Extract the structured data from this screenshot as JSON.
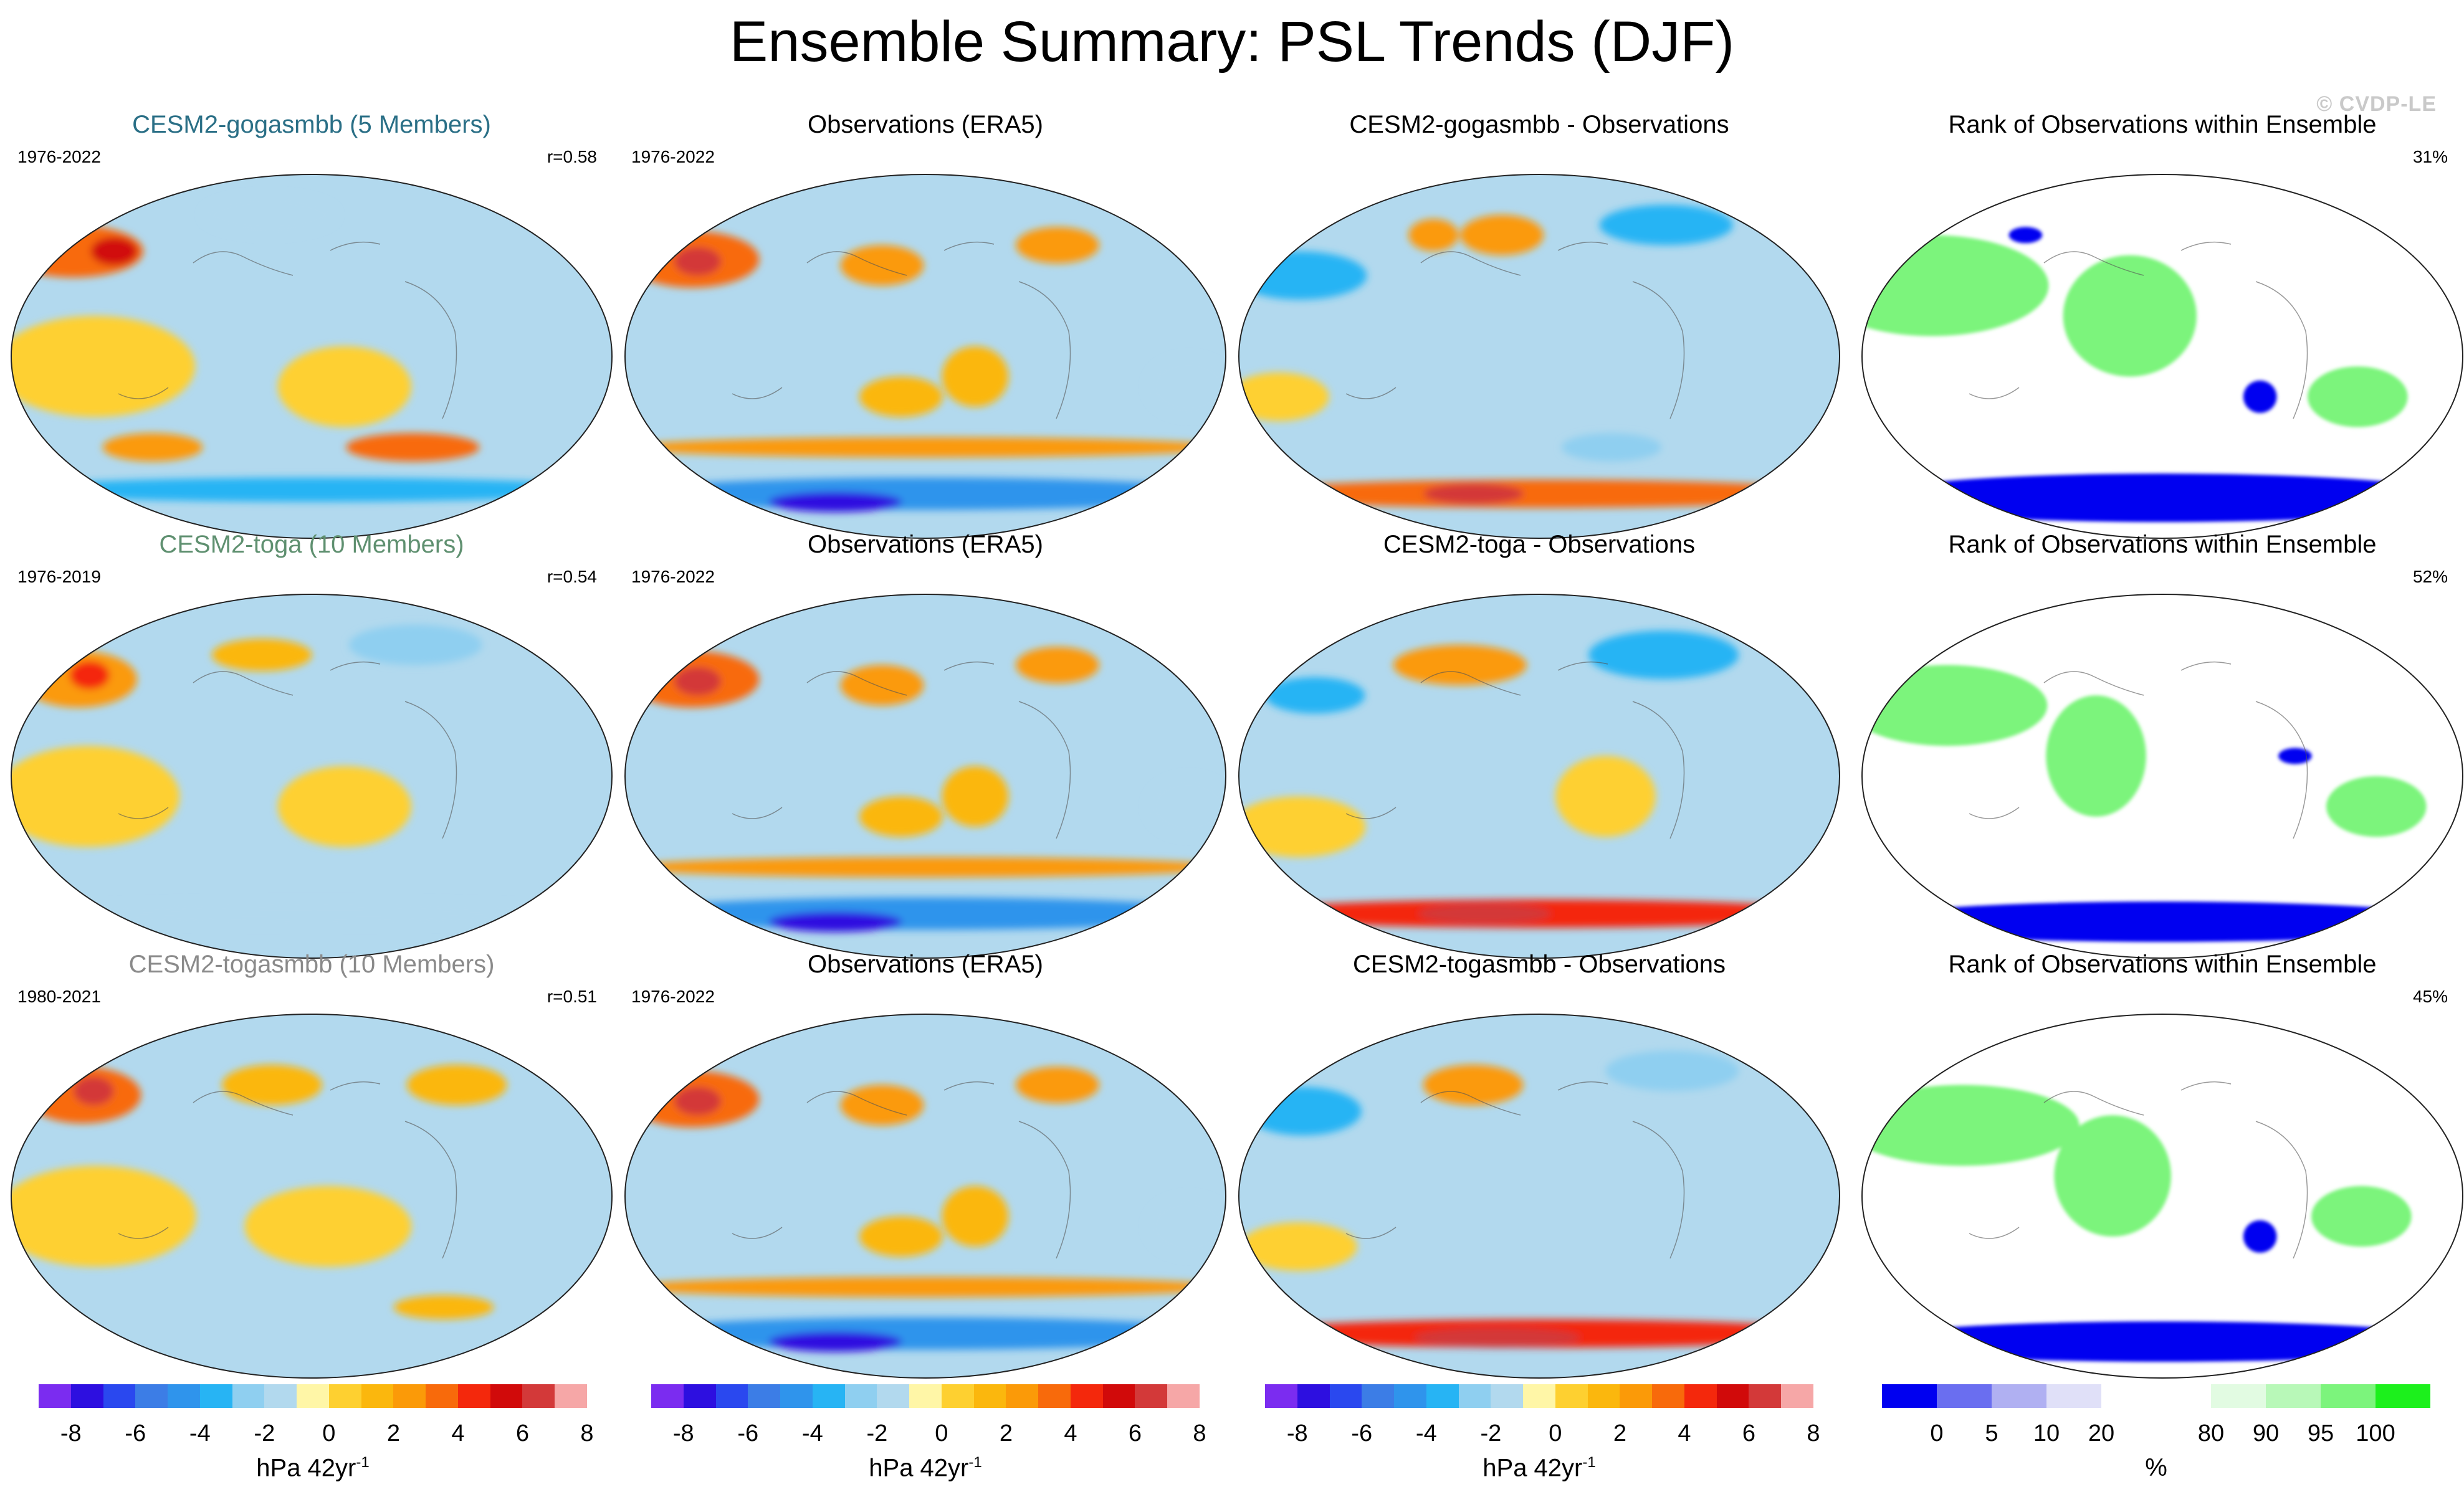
{
  "title": "Ensemble Summary: PSL Trends (DJF)",
  "watermark": "© CVDP-LE",
  "colors": {
    "title_gogasmbb": "#2a6f86",
    "title_toga": "#5f9070",
    "title_togasmbb": "#8a8a8a",
    "ocean": "#b2d9ee",
    "land_line": "#555555"
  },
  "chart_data": [
    {
      "type": "heatmap",
      "panel": "r1c1",
      "title": "CESM2-gogasmbb (5 Members)",
      "period": "1976-2022",
      "metric": "r=0.58",
      "blobs": [
        {
          "lon": -175,
          "lat": 52,
          "rx": 42,
          "ry": 13,
          "v": 3.5
        },
        {
          "lon": -145,
          "lat": 52,
          "rx": 14,
          "ry": 7,
          "v": 5.5
        },
        {
          "lon": -110,
          "lat": -45,
          "rx": 30,
          "ry": 7,
          "v": 3.0
        },
        {
          "lon": 70,
          "lat": -45,
          "rx": 40,
          "ry": 7,
          "v": 3.5
        },
        {
          "lon": 0,
          "lat": -66,
          "rx": 180,
          "ry": 6,
          "v": -3.5
        },
        {
          "lon": -40,
          "lat": 70,
          "rx": 40,
          "ry": 10,
          "v": -1.5
        },
        {
          "lon": -130,
          "lat": -5,
          "rx": 60,
          "ry": 25,
          "v": 0.5
        },
        {
          "lon": 20,
          "lat": -15,
          "rx": 40,
          "ry": 20,
          "v": 0.5
        }
      ]
    },
    {
      "type": "heatmap",
      "panel": "r1c2",
      "title": "Observations (ERA5)",
      "period": "1976-2022",
      "metric": "",
      "blobs": [
        {
          "lon": -165,
          "lat": 48,
          "rx": 40,
          "ry": 14,
          "v": 3.5
        },
        {
          "lon": -160,
          "lat": 47,
          "rx": 14,
          "ry": 7,
          "v": 6.5
        },
        {
          "lon": -30,
          "lat": 45,
          "rx": 25,
          "ry": 10,
          "v": 2.5
        },
        {
          "lon": 100,
          "lat": 55,
          "rx": 25,
          "ry": 9,
          "v": 2.5
        },
        {
          "lon": 0,
          "lat": -45,
          "rx": 180,
          "ry": 5,
          "v": 2.5
        },
        {
          "lon": 0,
          "lat": -68,
          "rx": 180,
          "ry": 8,
          "v": -4.5
        },
        {
          "lon": -90,
          "lat": -72,
          "rx": 40,
          "ry": 5,
          "v": -7.0
        },
        {
          "lon": 30,
          "lat": -10,
          "rx": 20,
          "ry": 15,
          "v": 2.0
        },
        {
          "lon": -15,
          "lat": -20,
          "rx": 25,
          "ry": 10,
          "v": 2.0
        },
        {
          "lon": 160,
          "lat": -15,
          "rx": 25,
          "ry": 15,
          "v": -1.0
        }
      ]
    },
    {
      "type": "heatmap",
      "panel": "r1c3",
      "title": "CESM2-gogasmbb - Observations",
      "period": "",
      "metric": "",
      "blobs": [
        {
          "lon": -160,
          "lat": 40,
          "rx": 40,
          "ry": 12,
          "v": -3.5
        },
        {
          "lon": 110,
          "lat": 65,
          "rx": 40,
          "ry": 10,
          "v": -3.0
        },
        {
          "lon": -30,
          "lat": 60,
          "rx": 25,
          "ry": 10,
          "v": 3.0
        },
        {
          "lon": -85,
          "lat": 60,
          "rx": 15,
          "ry": 8,
          "v": 2.5
        },
        {
          "lon": 0,
          "lat": -68,
          "rx": 180,
          "ry": 7,
          "v": 4.0
        },
        {
          "lon": -60,
          "lat": -68,
          "rx": 30,
          "ry": 5,
          "v": 7.0
        },
        {
          "lon": 50,
          "lat": -45,
          "rx": 30,
          "ry": 7,
          "v": -2.0
        },
        {
          "lon": -160,
          "lat": -20,
          "rx": 30,
          "ry": 12,
          "v": 0.5
        }
      ]
    },
    {
      "type": "heatmap",
      "panel": "r2c1",
      "title": "CESM2-toga (10 Members)",
      "period": "1976-2019",
      "metric": "r=0.54",
      "blobs": [
        {
          "lon": -165,
          "lat": 48,
          "rx": 35,
          "ry": 14,
          "v": 3.0
        },
        {
          "lon": -160,
          "lat": 50,
          "rx": 12,
          "ry": 7,
          "v": 5.0
        },
        {
          "lon": -40,
          "lat": 60,
          "rx": 30,
          "ry": 8,
          "v": 1.5
        },
        {
          "lon": 90,
          "lat": 65,
          "rx": 40,
          "ry": 10,
          "v": -2.5
        },
        {
          "lon": -135,
          "lat": -10,
          "rx": 55,
          "ry": 25,
          "v": 0.5
        },
        {
          "lon": 20,
          "lat": -15,
          "rx": 40,
          "ry": 20,
          "v": 0.5
        },
        {
          "lon": 0,
          "lat": -68,
          "rx": 180,
          "ry": 6,
          "v": -1.5
        }
      ]
    },
    {
      "type": "heatmap",
      "panel": "r2c2",
      "title": "Observations (ERA5)",
      "period": "1976-2022",
      "metric": "",
      "blobs": [
        {
          "lon": -165,
          "lat": 48,
          "rx": 40,
          "ry": 14,
          "v": 3.5
        },
        {
          "lon": -160,
          "lat": 47,
          "rx": 14,
          "ry": 7,
          "v": 6.5
        },
        {
          "lon": -30,
          "lat": 45,
          "rx": 25,
          "ry": 10,
          "v": 2.5
        },
        {
          "lon": 100,
          "lat": 55,
          "rx": 25,
          "ry": 9,
          "v": 2.5
        },
        {
          "lon": 0,
          "lat": -45,
          "rx": 180,
          "ry": 5,
          "v": 2.5
        },
        {
          "lon": 0,
          "lat": -68,
          "rx": 180,
          "ry": 8,
          "v": -4.5
        },
        {
          "lon": -90,
          "lat": -72,
          "rx": 40,
          "ry": 5,
          "v": -7.0
        },
        {
          "lon": 30,
          "lat": -10,
          "rx": 20,
          "ry": 15,
          "v": 2.0
        },
        {
          "lon": -15,
          "lat": -20,
          "rx": 25,
          "ry": 10,
          "v": 2.0
        },
        {
          "lon": 160,
          "lat": -15,
          "rx": 25,
          "ry": 15,
          "v": -1.0
        }
      ]
    },
    {
      "type": "heatmap",
      "panel": "r2c3",
      "title": "CESM2-toga - Observations",
      "period": "",
      "metric": "",
      "blobs": [
        {
          "lon": -150,
          "lat": 40,
          "rx": 30,
          "ry": 9,
          "v": -3.0
        },
        {
          "lon": 100,
          "lat": 60,
          "rx": 45,
          "ry": 12,
          "v": -3.0
        },
        {
          "lon": -60,
          "lat": 55,
          "rx": 40,
          "ry": 10,
          "v": 2.5
        },
        {
          "lon": 0,
          "lat": -68,
          "rx": 180,
          "ry": 7,
          "v": 4.5
        },
        {
          "lon": -50,
          "lat": -68,
          "rx": 40,
          "ry": 5,
          "v": 6.5
        },
        {
          "lon": -150,
          "lat": -25,
          "rx": 40,
          "ry": 15,
          "v": 0.5
        },
        {
          "lon": 40,
          "lat": -10,
          "rx": 30,
          "ry": 20,
          "v": 0.5
        }
      ]
    },
    {
      "type": "heatmap",
      "panel": "r3c1",
      "title": "CESM2-togasmbb (10 Members)",
      "period": "1980-2021",
      "metric": "r=0.51",
      "blobs": [
        {
          "lon": -165,
          "lat": 50,
          "rx": 35,
          "ry": 14,
          "v": 3.5
        },
        {
          "lon": -160,
          "lat": 52,
          "rx": 12,
          "ry": 7,
          "v": 7.0
        },
        {
          "lon": -30,
          "lat": 55,
          "rx": 30,
          "ry": 10,
          "v": 2.0
        },
        {
          "lon": 110,
          "lat": 55,
          "rx": 30,
          "ry": 10,
          "v": 1.5
        },
        {
          "lon": -130,
          "lat": -10,
          "rx": 60,
          "ry": 25,
          "v": 0.5
        },
        {
          "lon": 10,
          "lat": -15,
          "rx": 50,
          "ry": 20,
          "v": 0.5
        },
        {
          "lon": 100,
          "lat": -55,
          "rx": 30,
          "ry": 6,
          "v": 2.0
        }
      ]
    },
    {
      "type": "heatmap",
      "panel": "r3c2",
      "title": "Observations (ERA5)",
      "period": "1976-2022",
      "metric": "",
      "blobs": [
        {
          "lon": -165,
          "lat": 48,
          "rx": 40,
          "ry": 14,
          "v": 3.5
        },
        {
          "lon": -160,
          "lat": 47,
          "rx": 14,
          "ry": 7,
          "v": 6.5
        },
        {
          "lon": -30,
          "lat": 45,
          "rx": 25,
          "ry": 10,
          "v": 2.5
        },
        {
          "lon": 100,
          "lat": 55,
          "rx": 25,
          "ry": 9,
          "v": 2.5
        },
        {
          "lon": 0,
          "lat": -45,
          "rx": 180,
          "ry": 5,
          "v": 2.5
        },
        {
          "lon": 0,
          "lat": -68,
          "rx": 180,
          "ry": 8,
          "v": -4.5
        },
        {
          "lon": -90,
          "lat": -72,
          "rx": 40,
          "ry": 5,
          "v": -7.0
        },
        {
          "lon": 30,
          "lat": -10,
          "rx": 20,
          "ry": 15,
          "v": 2.0
        },
        {
          "lon": -15,
          "lat": -20,
          "rx": 25,
          "ry": 10,
          "v": 2.0
        },
        {
          "lon": 160,
          "lat": -15,
          "rx": 25,
          "ry": 15,
          "v": -1.0
        }
      ]
    },
    {
      "type": "heatmap",
      "panel": "r3c3",
      "title": "CESM2-togasmbb - Observations",
      "period": "",
      "metric": "",
      "blobs": [
        {
          "lon": -160,
          "lat": 42,
          "rx": 35,
          "ry": 12,
          "v": -3.0
        },
        {
          "lon": 110,
          "lat": 62,
          "rx": 40,
          "ry": 10,
          "v": -2.5
        },
        {
          "lon": -50,
          "lat": 55,
          "rx": 30,
          "ry": 10,
          "v": 2.5
        },
        {
          "lon": 0,
          "lat": -68,
          "rx": 180,
          "ry": 7,
          "v": 4.5
        },
        {
          "lon": -40,
          "lat": -70,
          "rx": 50,
          "ry": 5,
          "v": 7.0
        },
        {
          "lon": -150,
          "lat": -25,
          "rx": 35,
          "ry": 12,
          "v": 0.5
        }
      ]
    },
    {
      "type": "heatmap",
      "panel": "r1c4",
      "title": "Rank of Observations within Ensemble",
      "period": "",
      "metric": "31%",
      "blobs": [
        {
          "lon": -150,
          "lat": 35,
          "rx": 70,
          "ry": 25,
          "v": 100
        },
        {
          "lon": -20,
          "lat": 20,
          "rx": 40,
          "ry": 30,
          "v": 100
        },
        {
          "lon": 120,
          "lat": -20,
          "rx": 30,
          "ry": 15,
          "v": 100
        },
        {
          "lon": 0,
          "lat": -70,
          "rx": 180,
          "ry": 12,
          "v": 0
        },
        {
          "lon": 60,
          "lat": -20,
          "rx": 10,
          "ry": 8,
          "v": 0
        },
        {
          "lon": -110,
          "lat": 60,
          "rx": 10,
          "ry": 4,
          "v": 0
        }
      ]
    },
    {
      "type": "heatmap",
      "panel": "r2c4",
      "title": "Rank of Observations within Ensemble",
      "period": "",
      "metric": "52%",
      "blobs": [
        {
          "lon": -140,
          "lat": 35,
          "rx": 60,
          "ry": 20,
          "v": 100
        },
        {
          "lon": -40,
          "lat": 10,
          "rx": 30,
          "ry": 30,
          "v": 100
        },
        {
          "lon": 130,
          "lat": -15,
          "rx": 30,
          "ry": 15,
          "v": 100
        },
        {
          "lon": 0,
          "lat": -72,
          "rx": 180,
          "ry": 10,
          "v": 0
        },
        {
          "lon": 80,
          "lat": 10,
          "rx": 10,
          "ry": 4,
          "v": 0
        }
      ]
    },
    {
      "type": "heatmap",
      "panel": "r3c4",
      "title": "Rank of Observations within Ensemble",
      "period": "",
      "metric": "45%",
      "blobs": [
        {
          "lon": -130,
          "lat": 35,
          "rx": 70,
          "ry": 20,
          "v": 100
        },
        {
          "lon": -30,
          "lat": 10,
          "rx": 35,
          "ry": 30,
          "v": 100
        },
        {
          "lon": 120,
          "lat": -10,
          "rx": 30,
          "ry": 15,
          "v": 100
        },
        {
          "lon": 0,
          "lat": -72,
          "rx": 180,
          "ry": 10,
          "v": 0
        },
        {
          "lon": 60,
          "lat": -20,
          "rx": 10,
          "ry": 8,
          "v": 0
        }
      ]
    }
  ],
  "colorbars": {
    "trend": {
      "colors": [
        "#7b2cf0",
        "#2d0fe0",
        "#2a48ef",
        "#3c7de6",
        "#2f94ec",
        "#27b4f4",
        "#8fcff0",
        "#b2d9ee",
        "#fff6a7",
        "#fed030",
        "#fbb70d",
        "#fb9a08",
        "#f86a0b",
        "#f4280c",
        "#d10a0a",
        "#d33939",
        "#f6a7a7"
      ],
      "ticks": [
        "-8",
        "-6",
        "-4",
        "-2",
        "0",
        "2",
        "4",
        "6",
        "8"
      ],
      "unit": "hPa 42yr",
      "unit_sup": "-1"
    },
    "rank": {
      "colors": [
        "#0000f0",
        "#6a6ef0",
        "#b0b0f2",
        "#e0e0f8",
        "#ffffff",
        "#e2fbe2",
        "#b8f8b8",
        "#7cf47c",
        "#1cf01c"
      ],
      "ticks": [
        "0",
        "5",
        "10",
        "20",
        "80",
        "90",
        "95",
        "100"
      ],
      "unit": "%"
    }
  }
}
